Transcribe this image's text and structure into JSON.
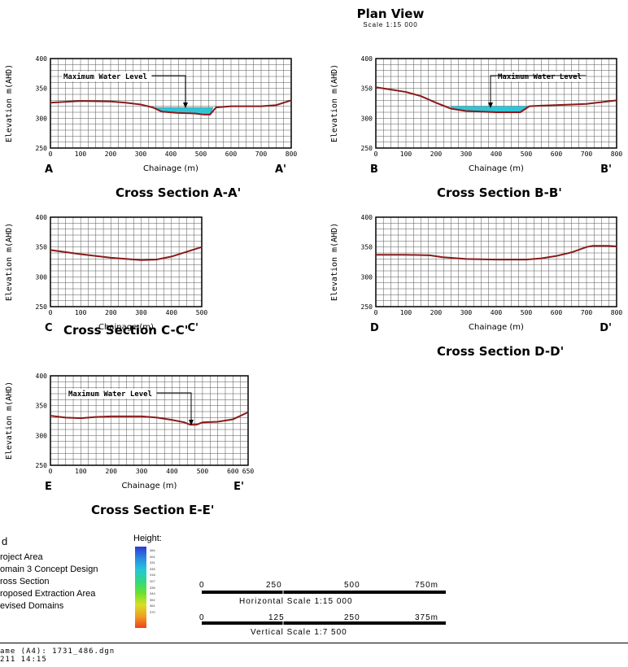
{
  "header": {
    "title": "Plan View",
    "scale": "Scale 1:15 000"
  },
  "cross_sections": [
    {
      "id": "A",
      "title": "Cross Section A-A'",
      "start": "A",
      "end": "A'",
      "xlabel": "Chainage (m)",
      "ylabel": "Elevation m(AHD)",
      "xticks": [
        "0",
        "100",
        "200",
        "300",
        "400",
        "500",
        "600",
        "700",
        "800"
      ],
      "yticks": [
        "250",
        "300",
        "350",
        "400"
      ],
      "annotation": "Maximum Water Level"
    },
    {
      "id": "B",
      "title": "Cross Section B-B'",
      "start": "B",
      "end": "B'",
      "xlabel": "Chainage (m)",
      "ylabel": "Elevation m(AHD)",
      "xticks": [
        "0",
        "100",
        "200",
        "300",
        "400",
        "500",
        "600",
        "700",
        "800"
      ],
      "yticks": [
        "250",
        "300",
        "350",
        "400"
      ],
      "annotation": "Maximum Water Level"
    },
    {
      "id": "C",
      "title": "Cross Section C-C'",
      "start": "C",
      "end": "C'",
      "xlabel": "Chainage (m)",
      "ylabel": "Elevation m(AHD)",
      "xticks": [
        "0",
        "100",
        "200",
        "300",
        "400",
        "500"
      ],
      "yticks": [
        "250",
        "300",
        "350",
        "400"
      ],
      "annotation": ""
    },
    {
      "id": "D",
      "title": "Cross Section D-D'",
      "start": "D",
      "end": "D'",
      "xlabel": "Chainage (m)",
      "ylabel": "Elevation m(AHD)",
      "xticks": [
        "0",
        "100",
        "200",
        "300",
        "400",
        "500",
        "600",
        "700",
        "800"
      ],
      "yticks": [
        "250",
        "300",
        "350",
        "400"
      ],
      "annotation": ""
    },
    {
      "id": "E",
      "title": "Cross Section E-E'",
      "start": "E",
      "end": "E'",
      "xlabel": "Chainage (m)",
      "ylabel": "Elevation m(AHD)",
      "xticks": [
        "0",
        "100",
        "200",
        "300",
        "400",
        "500",
        "600",
        "650"
      ],
      "yticks": [
        "250",
        "300",
        "350",
        "400"
      ],
      "annotation": "Maximum Water Level"
    }
  ],
  "legend": {
    "title": "d",
    "items": [
      "roject Area",
      "omain 3 Concept Design",
      "ross Section",
      "roposed Extraction Area",
      "evised Domains"
    ],
    "height_title": "Height:",
    "height_values": [
      "384",
      "391",
      "331",
      "335",
      "318",
      "327",
      "335",
      "344",
      "352",
      "361",
      "370"
    ]
  },
  "scale_bars": {
    "horizontal": {
      "ticks": [
        "0",
        "250",
        "500",
        "750m"
      ],
      "label": "Horizontal Scale 1:15 000"
    },
    "vertical": {
      "ticks": [
        "0",
        "125",
        "250",
        "375m"
      ],
      "label": "Vertical Scale 1:7 500"
    }
  },
  "footer": {
    "filename": "ame (A4): 1731_486.dgn",
    "date": "211 14:15"
  },
  "colors": {
    "profile": "#8b1a1a",
    "water": "#33c4d4",
    "grid": "#555555"
  }
}
